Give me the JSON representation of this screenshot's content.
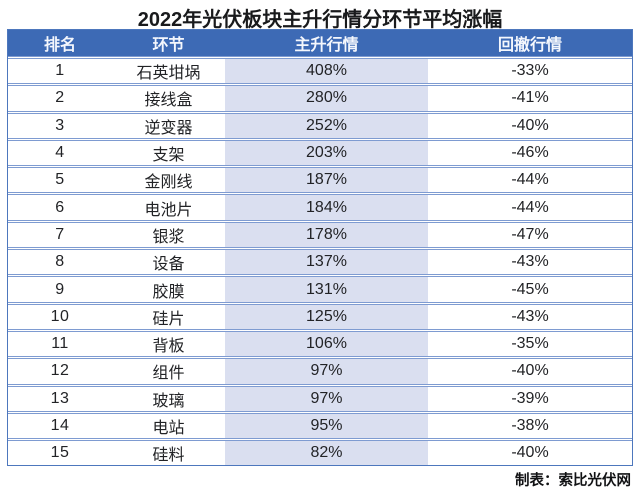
{
  "title": "2022年光伏板块主升行情分环节平均涨幅",
  "table": {
    "columns": [
      "排名",
      "环节",
      "主升行情",
      "回撤行情"
    ],
    "rows": [
      {
        "rank": "1",
        "segment": "石英坩埚",
        "rally": "408%",
        "drawdown": "-33%"
      },
      {
        "rank": "2",
        "segment": "接线盒",
        "rally": "280%",
        "drawdown": "-41%"
      },
      {
        "rank": "3",
        "segment": "逆变器",
        "rally": "252%",
        "drawdown": "-40%"
      },
      {
        "rank": "4",
        "segment": "支架",
        "rally": "203%",
        "drawdown": "-46%"
      },
      {
        "rank": "5",
        "segment": "金刚线",
        "rally": "187%",
        "drawdown": "-44%"
      },
      {
        "rank": "6",
        "segment": "电池片",
        "rally": "184%",
        "drawdown": "-44%"
      },
      {
        "rank": "7",
        "segment": "银浆",
        "rally": "178%",
        "drawdown": "-47%"
      },
      {
        "rank": "8",
        "segment": "设备",
        "rally": "137%",
        "drawdown": "-43%"
      },
      {
        "rank": "9",
        "segment": "胶膜",
        "rally": "131%",
        "drawdown": "-45%"
      },
      {
        "rank": "10",
        "segment": "硅片",
        "rally": "125%",
        "drawdown": "-43%"
      },
      {
        "rank": "11",
        "segment": "背板",
        "rally": "106%",
        "drawdown": "-35%"
      },
      {
        "rank": "12",
        "segment": "组件",
        "rally": "97%",
        "drawdown": "-40%"
      },
      {
        "rank": "13",
        "segment": "玻璃",
        "rally": "97%",
        "drawdown": "-39%"
      },
      {
        "rank": "14",
        "segment": "电站",
        "rally": "95%",
        "drawdown": "-38%"
      },
      {
        "rank": "15",
        "segment": "硅料",
        "rally": "82%",
        "drawdown": "-40%"
      }
    ]
  },
  "footer": {
    "credit": "制表：索比光伏网"
  },
  "colors": {
    "header_bg": "#3d6ab5",
    "header_text": "#f4f7fd",
    "rally_column_bg": "#dadff0",
    "row_separator": "#7e9bd1",
    "outer_border": "#4d77bd",
    "title_text": "#191a1c"
  },
  "chart_data": {
    "type": "table",
    "title": "2022年光伏板块主升行情分环节平均涨幅",
    "columns": [
      "排名",
      "环节",
      "主升行情",
      "回撤行情"
    ],
    "categories": [
      "石英坩埚",
      "接线盒",
      "逆变器",
      "支架",
      "金刚线",
      "电池片",
      "银浆",
      "设备",
      "胶膜",
      "硅片",
      "背板",
      "组件",
      "玻璃",
      "电站",
      "硅料"
    ],
    "series": [
      {
        "name": "主升行情",
        "unit": "%",
        "values": [
          408,
          280,
          252,
          203,
          187,
          184,
          178,
          137,
          131,
          125,
          106,
          97,
          97,
          95,
          82
        ]
      },
      {
        "name": "回撤行情",
        "unit": "%",
        "values": [
          -33,
          -41,
          -40,
          -46,
          -44,
          -44,
          -47,
          -43,
          -45,
          -43,
          -35,
          -40,
          -39,
          -38,
          -40
        ]
      }
    ],
    "source_credit": "制表：索比光伏网"
  }
}
